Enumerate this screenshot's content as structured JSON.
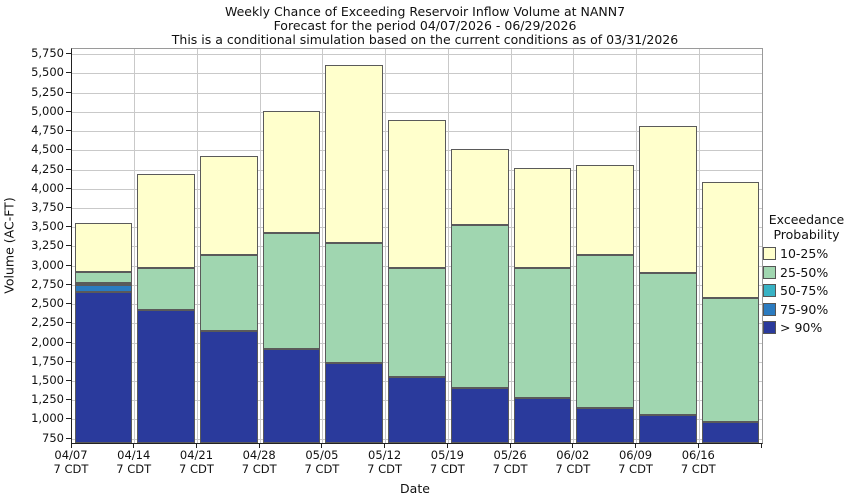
{
  "title": {
    "line1": "Weekly Chance of Exceeding Reservoir Inflow Volume at NANN7",
    "line2": "Forecast for the period 04/07/2026 - 06/29/2026",
    "line3": "This is a conditional simulation based on the current conditions as of 03/31/2026"
  },
  "y_axis": {
    "label": "Volume (AC-FT)",
    "tick_min": 750,
    "tick_max": 5750,
    "tick_step": 250
  },
  "x_axis": {
    "label": "Date",
    "time_suffix": "7 CDT",
    "dates": [
      "04/07",
      "04/14",
      "04/21",
      "04/28",
      "05/05",
      "05/12",
      "05/19",
      "05/26",
      "06/02",
      "06/09",
      "06/16"
    ]
  },
  "legend": {
    "title_line1": "Exceedance",
    "title_line2": "Probability",
    "items": [
      {
        "label": "10-25%",
        "color": "#FFFFCC"
      },
      {
        "label": "25-50%",
        "color": "#A0D6B0"
      },
      {
        "label": "50-75%",
        "color": "#38B2C4"
      },
      {
        "label": "75-90%",
        "color": "#2B7BC0"
      },
      {
        "label": "> 90%",
        "color": "#2A3A9C"
      }
    ]
  },
  "chart_data": {
    "type": "bar",
    "stacked": true,
    "title": "Weekly Chance of Exceeding Reservoir Inflow Volume at NANN7",
    "xlabel": "Date",
    "ylabel": "Volume (AC-FT)",
    "ylim": [
      700,
      5825
    ],
    "baseline": 700,
    "grid": true,
    "legend_position": "right",
    "categories": [
      "04/07",
      "04/14",
      "04/21",
      "04/28",
      "05/05",
      "05/12",
      "05/19",
      "05/26",
      "06/02",
      "06/09",
      "06/16"
    ],
    "series": [
      {
        "name": "> 90%",
        "color": "#2A3A9C",
        "cumulative_tops": [
          2670,
          2425,
          2155,
          1920,
          1735,
          1560,
          1410,
          1280,
          1160,
          1070,
          975
        ]
      },
      {
        "name": "75-90%",
        "color": "#2B7BC0",
        "cumulative_tops": [
          2755,
          2425,
          2155,
          1920,
          1735,
          1560,
          1410,
          1280,
          1160,
          1070,
          975
        ]
      },
      {
        "name": "50-75%",
        "color": "#38B2C4",
        "cumulative_tops": [
          2780,
          2425,
          2155,
          1920,
          1735,
          1560,
          1410,
          1280,
          1160,
          1070,
          975
        ]
      },
      {
        "name": "25-50%",
        "color": "#A0D6B0",
        "cumulative_tops": [
          2930,
          2970,
          3145,
          3435,
          3305,
          2980,
          3530,
          2980,
          3150,
          2910,
          2580
        ]
      },
      {
        "name": "10-25%",
        "color": "#FFFFCC",
        "cumulative_tops": [
          3560,
          4200,
          4435,
          5020,
          5620,
          4900,
          4520,
          4275,
          4310,
          4825,
          4100
        ]
      }
    ]
  }
}
